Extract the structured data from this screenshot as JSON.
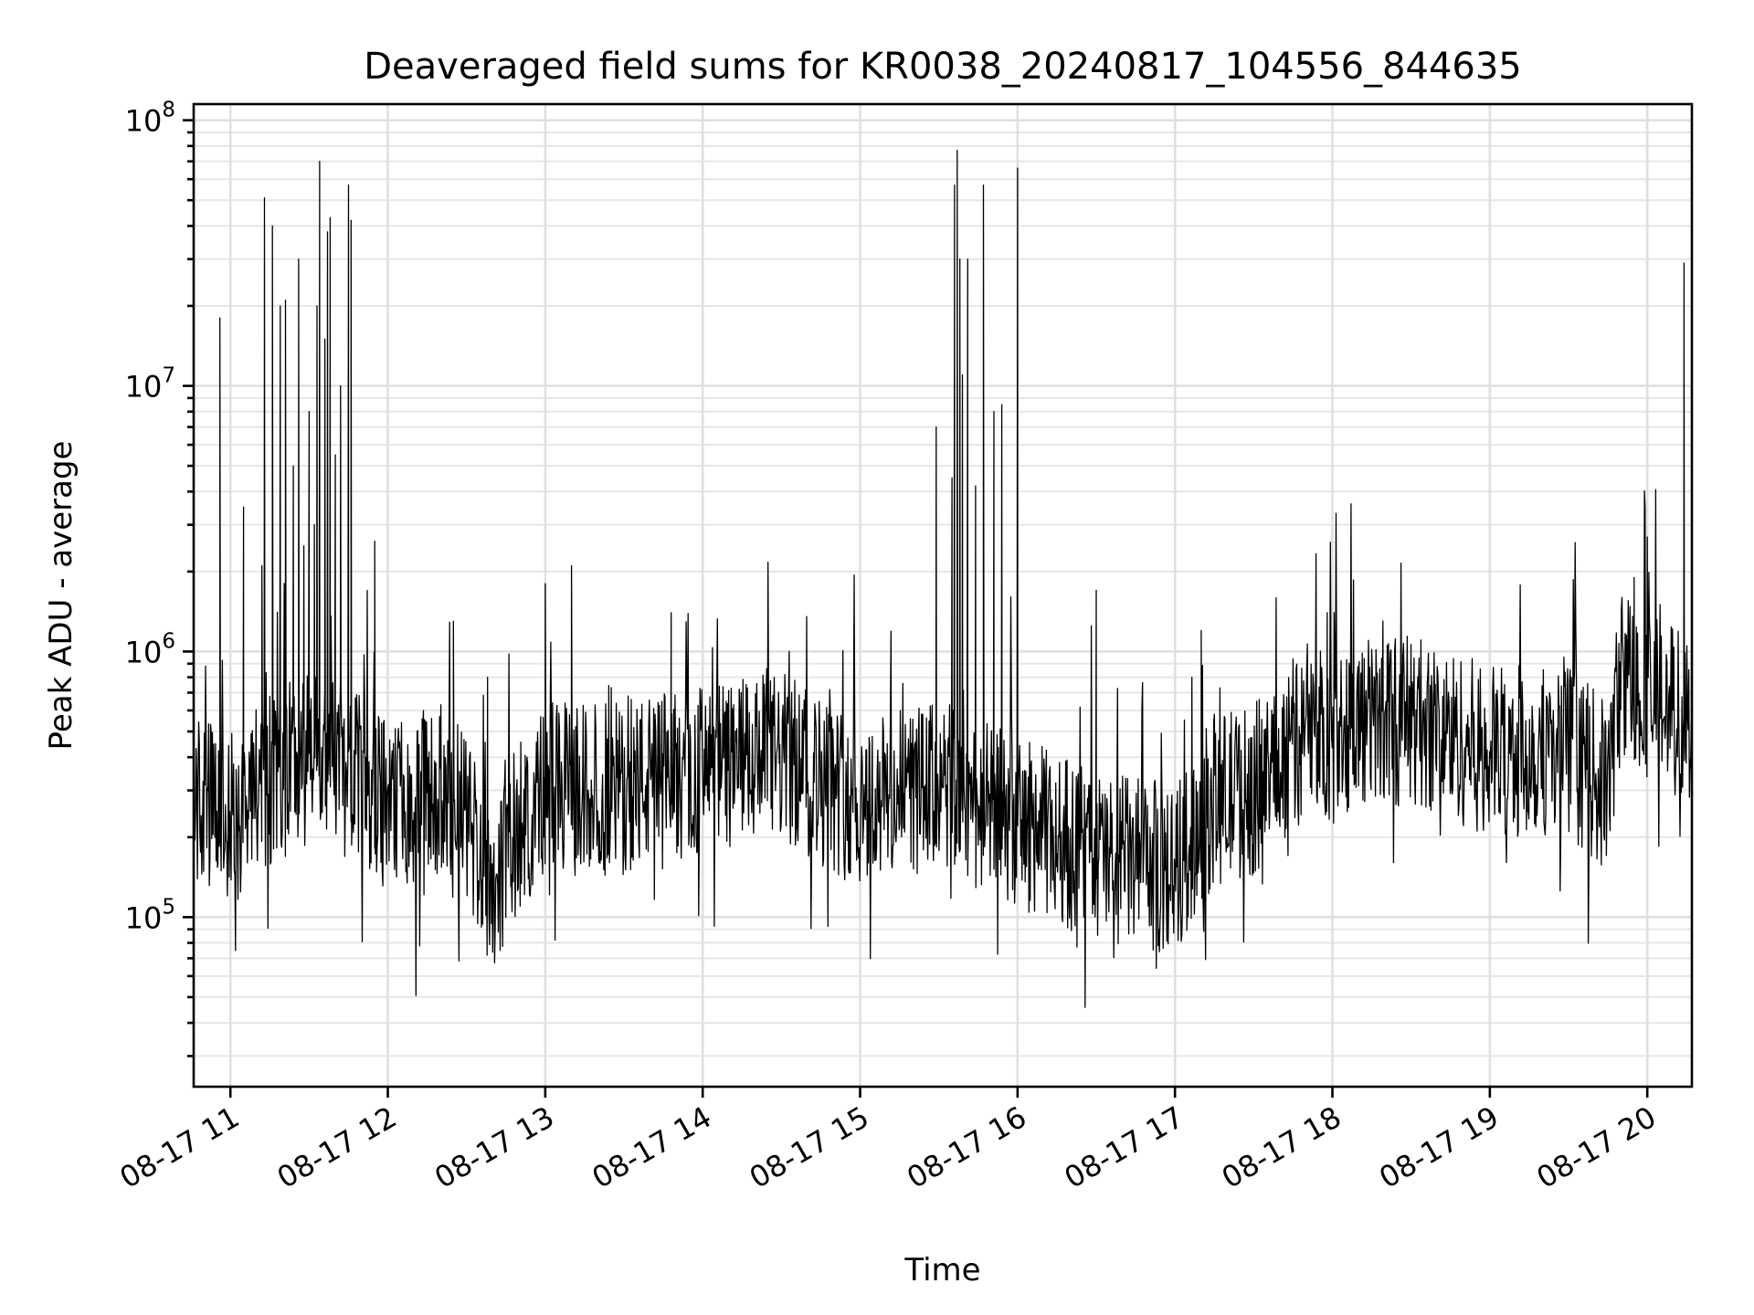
{
  "chart_data": {
    "type": "line",
    "title": "Deaveraged field sums for KR0038_20240817_104556_844635",
    "xlabel": "Time",
    "ylabel": "Peak ADU - average",
    "yscale": "log",
    "ylim": [
      23000,
      115000000
    ],
    "xlim": [
      "2024-08-17 10:46",
      "2024-08-17 20:17"
    ],
    "grid": true,
    "x_ticks": [
      "08-17 11",
      "08-17 12",
      "08-17 13",
      "08-17 14",
      "08-17 15",
      "08-17 16",
      "08-17 17",
      "08-17 18",
      "08-17 19",
      "08-17 20"
    ],
    "y_ticks": [
      {
        "base": "10",
        "exp": "5",
        "value": 100000
      },
      {
        "base": "10",
        "exp": "6",
        "value": 1000000
      },
      {
        "base": "10",
        "exp": "7",
        "value": 10000000
      },
      {
        "base": "10",
        "exp": "8",
        "value": 100000000
      }
    ],
    "series": [
      {
        "color": "#000000",
        "baseline": [
          [
            "2024-08-17 10:46",
            280000
          ],
          [
            "2024-08-17 11:00",
            230000
          ],
          [
            "2024-08-17 11:15",
            330000
          ],
          [
            "2024-08-17 11:30",
            400000
          ],
          [
            "2024-08-17 11:45",
            350000
          ],
          [
            "2024-08-17 12:00",
            260000
          ],
          [
            "2024-08-17 12:20",
            300000
          ],
          [
            "2024-08-17 12:30",
            240000
          ],
          [
            "2024-08-17 12:40",
            130000
          ],
          [
            "2024-08-17 12:50",
            220000
          ],
          [
            "2024-08-17 13:00",
            300000
          ],
          [
            "2024-08-17 13:30",
            310000
          ],
          [
            "2024-08-17 14:00",
            360000
          ],
          [
            "2024-08-17 14:30",
            400000
          ],
          [
            "2024-08-17 15:00",
            270000
          ],
          [
            "2024-08-17 15:30",
            310000
          ],
          [
            "2024-08-17 16:00",
            230000
          ],
          [
            "2024-08-17 16:30",
            170000
          ],
          [
            "2024-08-17 17:00",
            150000
          ],
          [
            "2024-08-17 17:15",
            280000
          ],
          [
            "2024-08-17 17:30",
            300000
          ],
          [
            "2024-08-17 17:45",
            450000
          ],
          [
            "2024-08-17 18:00",
            520000
          ],
          [
            "2024-08-17 18:30",
            560000
          ],
          [
            "2024-08-17 19:00",
            420000
          ],
          [
            "2024-08-17 19:30",
            430000
          ],
          [
            "2024-08-17 19:45",
            300000
          ],
          [
            "2024-08-17 19:50",
            850000
          ],
          [
            "2024-08-17 20:00",
            700000
          ],
          [
            "2024-08-17 20:17",
            550000
          ]
        ],
        "spikes": [
          [
            "2024-08-17 10:56",
            18000000
          ],
          [
            "2024-08-17 11:05",
            3500000
          ],
          [
            "2024-08-17 11:12",
            2100000
          ],
          [
            "2024-08-17 11:13",
            51000000
          ],
          [
            "2024-08-17 11:16",
            40000000
          ],
          [
            "2024-08-17 11:19",
            20000000
          ],
          [
            "2024-08-17 11:21",
            21000000
          ],
          [
            "2024-08-17 11:24",
            5000000
          ],
          [
            "2024-08-17 11:26",
            30000000
          ],
          [
            "2024-08-17 11:28",
            2500000
          ],
          [
            "2024-08-17 11:30",
            8000000
          ],
          [
            "2024-08-17 11:32",
            3000000
          ],
          [
            "2024-08-17 11:33",
            20000000
          ],
          [
            "2024-08-17 11:34",
            70000000
          ],
          [
            "2024-08-17 11:36",
            15000000
          ],
          [
            "2024-08-17 11:37",
            38000000
          ],
          [
            "2024-08-17 11:38",
            43000000
          ],
          [
            "2024-08-17 11:40",
            5500000
          ],
          [
            "2024-08-17 11:42",
            10000000
          ],
          [
            "2024-08-17 11:45",
            57000000
          ],
          [
            "2024-08-17 11:46",
            42000000
          ],
          [
            "2024-08-17 11:55",
            2600000
          ],
          [
            "2024-08-17 12:25",
            1300000
          ],
          [
            "2024-08-17 12:38",
            800000
          ],
          [
            "2024-08-17 13:00",
            1800000
          ],
          [
            "2024-08-17 13:10",
            2100000
          ],
          [
            "2024-08-17 13:48",
            1400000
          ],
          [
            "2024-08-17 15:29",
            7000000
          ],
          [
            "2024-08-17 15:35",
            4500000
          ],
          [
            "2024-08-17 15:36",
            57000000
          ],
          [
            "2024-08-17 15:37",
            77000000
          ],
          [
            "2024-08-17 15:38",
            30000000
          ],
          [
            "2024-08-17 15:39",
            11000000
          ],
          [
            "2024-08-17 15:41",
            30000000
          ],
          [
            "2024-08-17 15:44",
            4200000
          ],
          [
            "2024-08-17 15:47",
            57000000
          ],
          [
            "2024-08-17 15:51",
            8000000
          ],
          [
            "2024-08-17 15:54",
            8500000
          ],
          [
            "2024-08-17 16:00",
            66000000
          ],
          [
            "2024-08-17 16:30",
            1700000
          ],
          [
            "2024-08-17 17:10",
            1200000
          ],
          [
            "2024-08-17 17:58",
            1400000
          ],
          [
            "2024-08-17 19:55",
            1900000
          ],
          [
            "2024-08-17 20:00",
            2700000
          ],
          [
            "2024-08-17 20:14",
            29000000
          ]
        ]
      }
    ]
  }
}
